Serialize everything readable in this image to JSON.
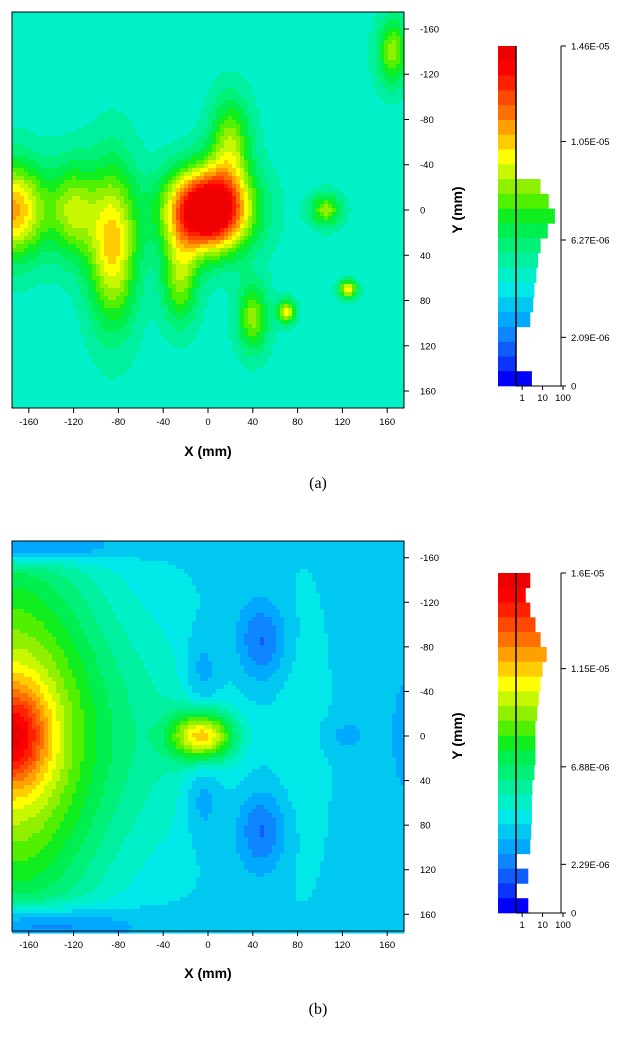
{
  "chart_data": [
    {
      "type": "heatmap",
      "panel_label": "(a)",
      "xlabel": "X (mm)",
      "ylabel": "Y (mm)",
      "xlim": [
        -175,
        175
      ],
      "ylim": [
        -175,
        175
      ],
      "x_ticks": [
        -160,
        -120,
        -80,
        -40,
        0,
        40,
        80,
        120,
        160
      ],
      "y_ticks": [
        -160,
        -120,
        -80,
        -40,
        0,
        40,
        80,
        120,
        160
      ],
      "background_level": 7,
      "blobs": [
        {
          "x": 0,
          "y": 0,
          "rx": 36,
          "ry": 36,
          "peak": 19
        },
        {
          "x": -175,
          "y": 0,
          "rx": 32,
          "ry": 42,
          "peak": 10
        },
        {
          "x": -120,
          "y": 0,
          "rx": 20,
          "ry": 42,
          "peak": 6
        },
        {
          "x": -85,
          "y": 30,
          "rx": 22,
          "ry": 70,
          "peak": 9
        },
        {
          "x": 20,
          "y": -60,
          "rx": 18,
          "ry": 40,
          "peak": 6
        },
        {
          "x": -25,
          "y": 60,
          "rx": 16,
          "ry": 40,
          "peak": 6
        },
        {
          "x": 40,
          "y": 95,
          "rx": 14,
          "ry": 30,
          "peak": 6
        },
        {
          "x": 105,
          "y": 0,
          "rx": 14,
          "ry": 14,
          "peak": 6
        },
        {
          "x": 125,
          "y": 70,
          "rx": 8,
          "ry": 8,
          "peak": 8
        },
        {
          "x": 70,
          "y": 90,
          "rx": 8,
          "ry": 10,
          "peak": 8
        },
        {
          "x": 165,
          "y": -140,
          "rx": 14,
          "ry": 30,
          "peak": 6
        }
      ],
      "colorbar": {
        "labels": [
          "1.46E-05",
          "1.05E-05",
          "6.27E-06",
          "2.09E-06",
          "0"
        ],
        "label_values": [
          1.46e-05,
          1.05e-05,
          6.27e-06,
          2.09e-06,
          0
        ],
        "vmax": 1.46e-05,
        "histogram_ticks": [
          "1",
          "10",
          "100"
        ],
        "histogram": [
          0.5,
          0.5,
          0.5,
          0.5,
          0.5,
          0.5,
          0.5,
          0.5,
          0.5,
          8,
          20,
          40,
          18,
          8,
          6,
          5,
          4,
          3.5,
          2.5,
          0.5,
          0.5,
          0.5,
          3
        ]
      }
    },
    {
      "type": "heatmap",
      "panel_label": "(b)",
      "xlabel": "X (mm)",
      "ylabel": "Y (mm)",
      "xlim": [
        -175,
        175
      ],
      "ylim": [
        -175,
        175
      ],
      "x_ticks": [
        -160,
        -120,
        -80,
        -40,
        0,
        40,
        80,
        120,
        160
      ],
      "y_ticks": [
        -160,
        -120,
        -80,
        -40,
        0,
        40,
        80,
        120,
        160
      ],
      "background_level": 5,
      "blobs": [
        {
          "x": -175,
          "y": 0,
          "rx": 80,
          "ry": 170,
          "peak": 10
        },
        {
          "x": -175,
          "y": 0,
          "rx": 32,
          "ry": 45,
          "peak": 7
        },
        {
          "x": -50,
          "y": 0,
          "rx": 80,
          "ry": 120,
          "peak": 2
        },
        {
          "x": -5,
          "y": 0,
          "rx": 28,
          "ry": 22,
          "peak": 10
        },
        {
          "x": 85,
          "y": 0,
          "rx": 30,
          "ry": 175,
          "peak": 1
        },
        {
          "x": -160,
          "y": -170,
          "rx": 70,
          "ry": 15,
          "peak": -5
        },
        {
          "x": -160,
          "y": 170,
          "rx": 80,
          "ry": 18,
          "peak": -5
        },
        {
          "x": -5,
          "y": -55,
          "rx": 16,
          "ry": 40,
          "peak": -2
        },
        {
          "x": -5,
          "y": 55,
          "rx": 16,
          "ry": 40,
          "peak": -2
        },
        {
          "x": 48,
          "y": -85,
          "rx": 22,
          "ry": 35,
          "peak": -3
        },
        {
          "x": 48,
          "y": 85,
          "rx": 22,
          "ry": 35,
          "peak": -3
        },
        {
          "x": 120,
          "y": 0,
          "rx": 22,
          "ry": 16,
          "peak": -1
        },
        {
          "x": 175,
          "y": 0,
          "rx": 12,
          "ry": 55,
          "peak": -1
        }
      ],
      "colorbar": {
        "labels": [
          "1.6E-05",
          "1.15E-05",
          "6.88E-06",
          "2.29E-06",
          "0"
        ],
        "label_values": [
          1.6e-05,
          1.15e-05,
          6.88e-06,
          2.29e-06,
          0
        ],
        "vmax": 1.6e-05,
        "histogram_ticks": [
          "1",
          "10",
          "100"
        ],
        "histogram": [
          2.5,
          1.5,
          2.5,
          4.5,
          8,
          16,
          10,
          8,
          6.5,
          5.5,
          4.5,
          4.5,
          4.5,
          4,
          3.2,
          3,
          3,
          2.8,
          2.5,
          0.5,
          2,
          0.5,
          2
        ]
      }
    }
  ]
}
